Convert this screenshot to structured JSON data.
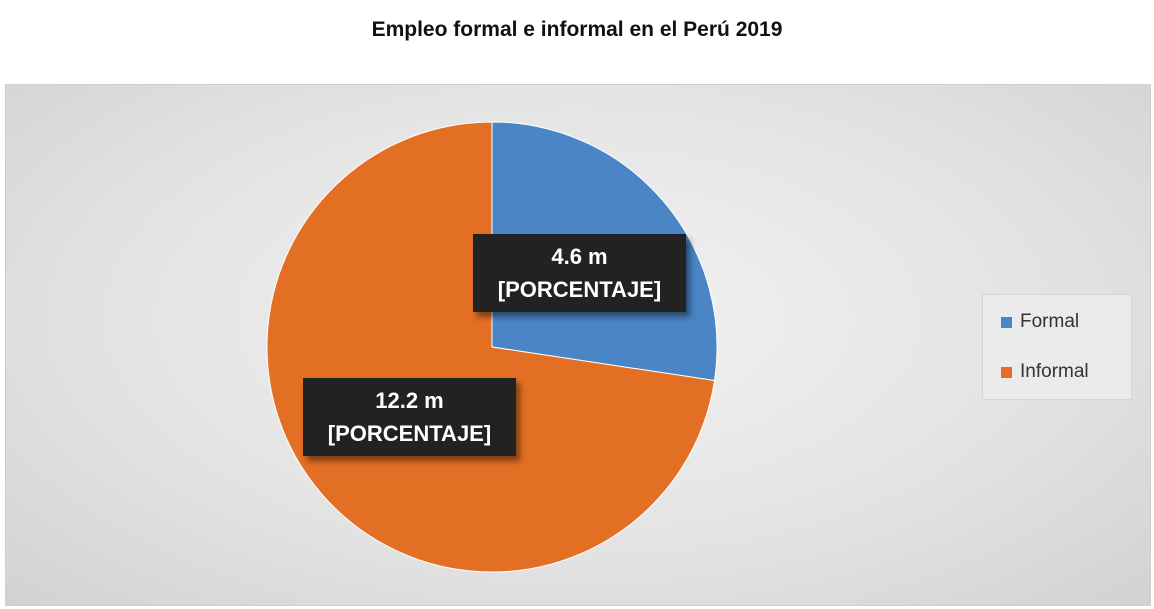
{
  "chart_data": {
    "type": "pie",
    "title": "Empleo formal e informal en el Perú 2019",
    "categories": [
      "Formal",
      "Informal"
    ],
    "values": [
      4.6,
      12.2
    ],
    "unit": "m",
    "colors": [
      "#4a86c5",
      "#e36f24"
    ],
    "data_labels": [
      {
        "value": "4.6 m",
        "text": "[PORCENTAJE]"
      },
      {
        "value": "12.2 m",
        "text": "[PORCENTAJE]"
      }
    ],
    "legend": {
      "placement": "right",
      "entries": [
        "Formal",
        "Informal"
      ]
    }
  }
}
